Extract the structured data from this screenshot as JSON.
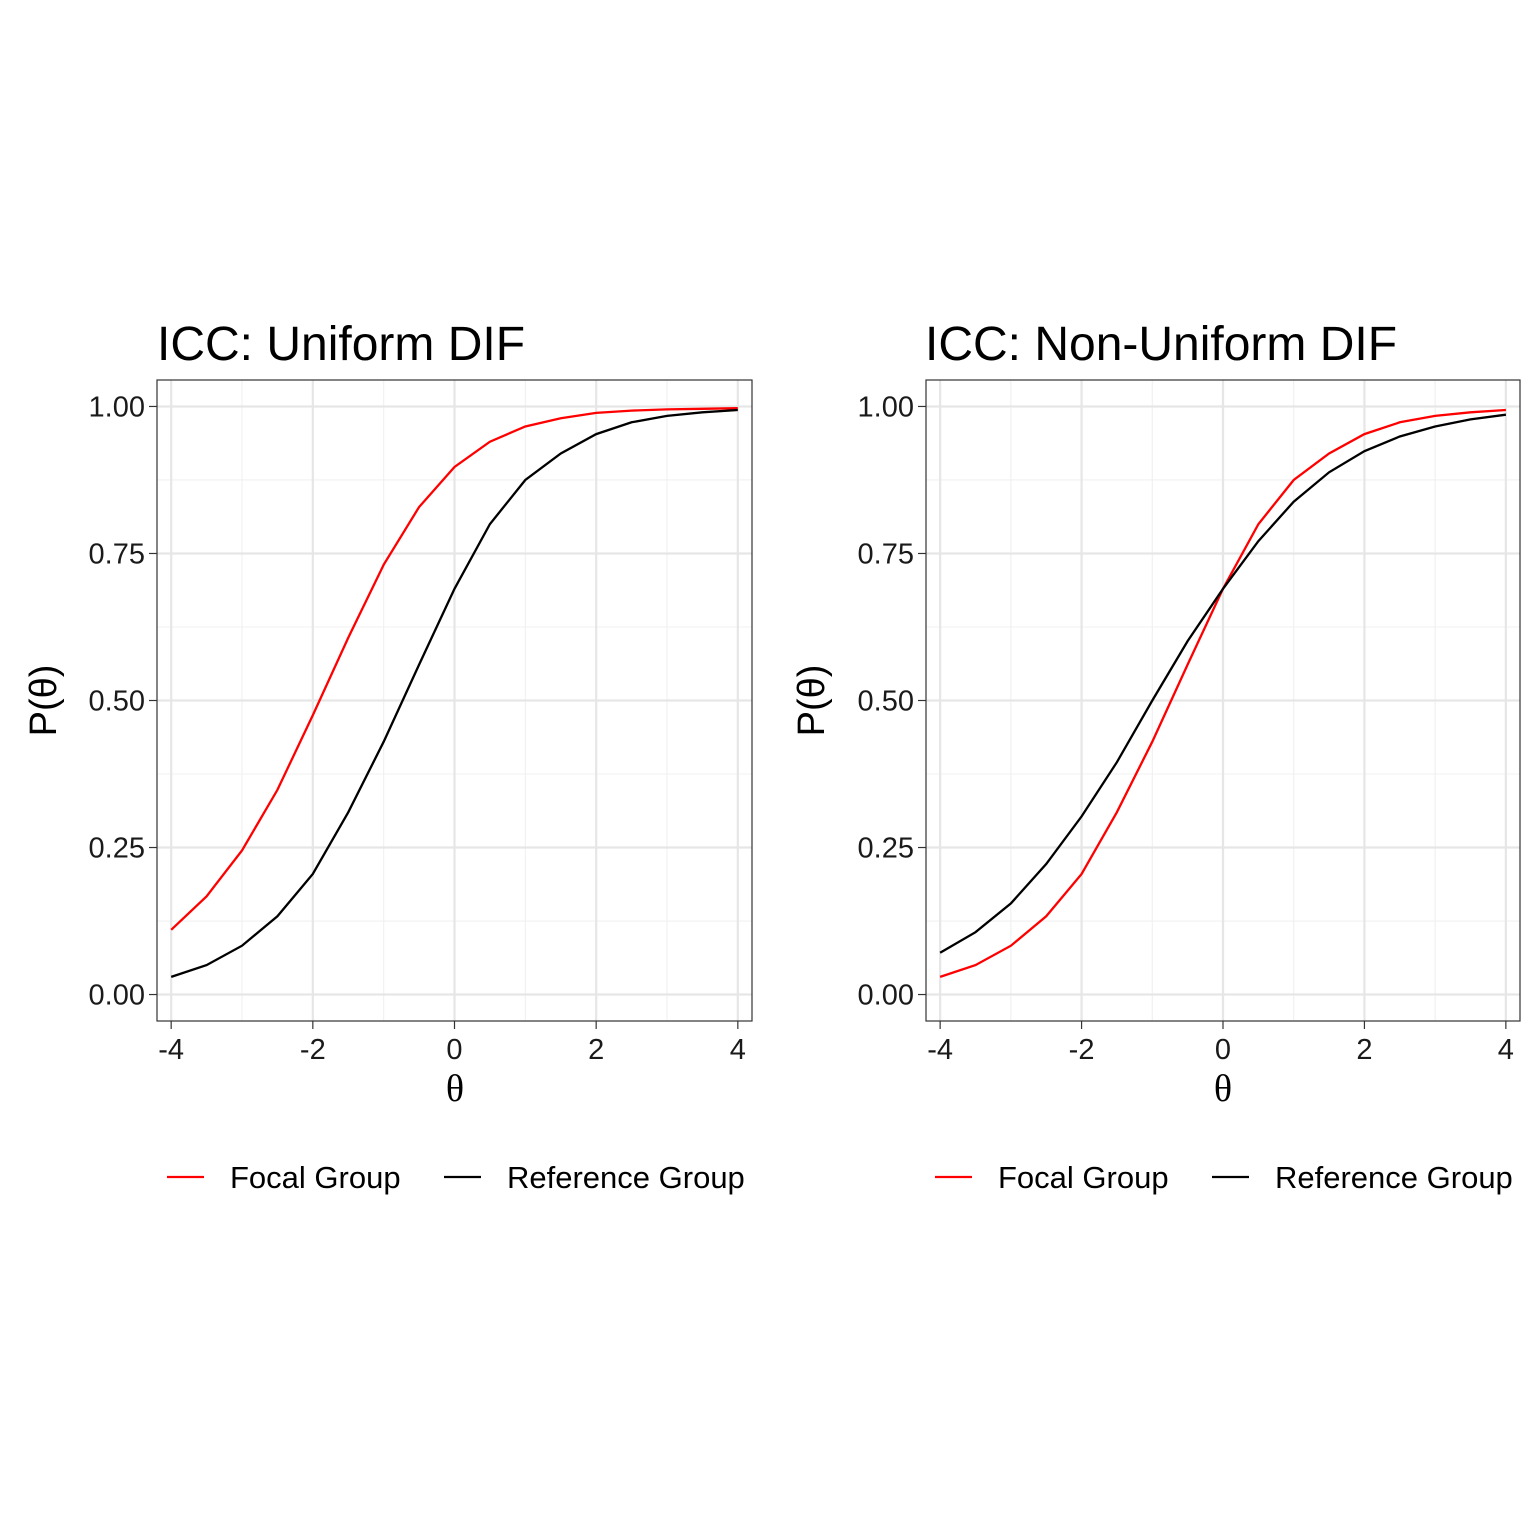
{
  "chart_data": [
    {
      "type": "line",
      "title": "ICC: Uniform DIF",
      "xlabel": "θ",
      "ylabel": "P(θ)",
      "xlim": [
        -4,
        4
      ],
      "ylim": [
        0,
        1
      ],
      "x_ticks": [
        "-4",
        "-2",
        "0",
        "2",
        "4"
      ],
      "y_ticks": [
        "0.00",
        "0.25",
        "0.50",
        "0.75",
        "1.00"
      ],
      "grid": true,
      "legend_position": "bottom",
      "x": [
        -4,
        -3.5,
        -3,
        -2.5,
        -2,
        -1.5,
        -1,
        -0.5,
        0,
        0.5,
        1,
        1.5,
        2,
        2.5,
        3,
        3.5,
        4
      ],
      "series": [
        {
          "name": "Focal Group",
          "color": "#ff0000",
          "values": [
            0.11,
            0.167,
            0.245,
            0.348,
            0.475,
            0.607,
            0.731,
            0.829,
            0.897,
            0.94,
            0.966,
            0.98,
            0.989,
            0.993,
            0.995,
            0.996,
            0.997
          ]
        },
        {
          "name": "Reference Group",
          "color": "#000000",
          "values": [
            0.03,
            0.05,
            0.083,
            0.133,
            0.205,
            0.31,
            0.43,
            0.561,
            0.69,
            0.8,
            0.875,
            0.92,
            0.953,
            0.973,
            0.984,
            0.99,
            0.994
          ]
        }
      ]
    },
    {
      "type": "line",
      "title": "ICC: Non-Uniform DIF",
      "xlabel": "θ",
      "ylabel": "P(θ)",
      "xlim": [
        -4,
        4
      ],
      "ylim": [
        0,
        1
      ],
      "x_ticks": [
        "-4",
        "-2",
        "0",
        "2",
        "4"
      ],
      "y_ticks": [
        "0.00",
        "0.25",
        "0.50",
        "0.75",
        "1.00"
      ],
      "grid": true,
      "legend_position": "bottom",
      "x": [
        -4,
        -3.5,
        -3,
        -2.5,
        -2,
        -1.5,
        -1,
        -0.5,
        0,
        0.5,
        1,
        1.5,
        2,
        2.5,
        3,
        3.5,
        4
      ],
      "series": [
        {
          "name": "Focal Group",
          "color": "#ff0000",
          "values": [
            0.03,
            0.05,
            0.083,
            0.133,
            0.205,
            0.31,
            0.43,
            0.561,
            0.69,
            0.8,
            0.875,
            0.92,
            0.953,
            0.973,
            0.984,
            0.99,
            0.994
          ]
        },
        {
          "name": "Reference Group",
          "color": "#000000",
          "values": [
            0.071,
            0.106,
            0.155,
            0.222,
            0.303,
            0.395,
            0.5,
            0.601,
            0.69,
            0.771,
            0.838,
            0.888,
            0.924,
            0.949,
            0.966,
            0.978,
            0.986
          ]
        }
      ]
    }
  ]
}
